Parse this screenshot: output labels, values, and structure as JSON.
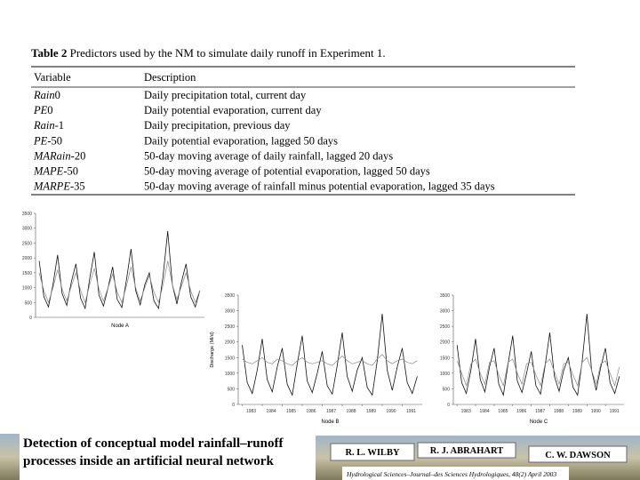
{
  "table": {
    "title_label": "Table 2",
    "title": "Predictors used by the NM to simulate daily runoff in Experiment 1.",
    "header": [
      "Variable",
      "Description"
    ],
    "rows": [
      [
        {
          "italic": "Rain",
          "plain": "0"
        },
        "Daily precipitation total, current day"
      ],
      [
        {
          "italic": "PE",
          "plain": "0"
        },
        "Daily potential evaporation, current day"
      ],
      [
        {
          "italic": "Rain",
          "plain": "-1"
        },
        "Daily precipitation, previous day"
      ],
      [
        {
          "italic": "PE",
          "plain": "-50"
        },
        "Daily potential evaporation, lagged 50 days"
      ],
      [
        {
          "italic": "MARain",
          "plain": "-20"
        },
        "50-day moving average of daily rainfall, lagged 20 days"
      ],
      [
        {
          "italic": "MAPE",
          "plain": "-50"
        },
        "50-day moving average of potential evaporation, lagged 50 days"
      ],
      [
        {
          "italic": "MARPE",
          "plain": "-35"
        },
        "50-day moving average of rainfall minus potential evaporation, lagged 35 days"
      ]
    ]
  },
  "chart_data": [
    {
      "type": "line",
      "xlabel": "Node A",
      "x": [
        1983,
        1983.25,
        1983.5,
        1983.75,
        1984,
        1984.25,
        1984.5,
        1984.75,
        1985,
        1985.25,
        1985.5,
        1985.75,
        1986,
        1986.25,
        1986.5,
        1986.75,
        1987,
        1987.25,
        1987.5,
        1987.75,
        1988,
        1988.25,
        1988.5,
        1988.75,
        1989,
        1989.25,
        1989.5,
        1989.75,
        1990,
        1990.25,
        1990.5,
        1990.75,
        1991,
        1991.25,
        1991.5,
        1991.75
      ],
      "xlim": [
        1982.8,
        1992
      ],
      "ylim": [
        0,
        3500
      ],
      "yticks": [
        0,
        500,
        1000,
        1500,
        2000,
        2500,
        3000,
        3500
      ],
      "series": [
        {
          "color": "#111111",
          "values": [
            1900,
            700,
            350,
            1100,
            2100,
            800,
            400,
            1200,
            1800,
            650,
            300,
            1300,
            2200,
            750,
            380,
            1000,
            1700,
            600,
            330,
            1250,
            2300,
            900,
            420,
            1100,
            1500,
            550,
            300,
            1400,
            2900,
            1100,
            450,
            1200,
            1800,
            700,
            350,
            900
          ]
        },
        {
          "color": "#888888",
          "values": [
            1500,
            900,
            500,
            1000,
            1600,
            950,
            550,
            1050,
            1500,
            900,
            500,
            1100,
            1650,
            950,
            550,
            1000,
            1450,
            850,
            500,
            1050,
            1700,
            1000,
            550,
            1000,
            1400,
            850,
            500,
            1100,
            1900,
            1100,
            600,
            1050,
            1500,
            900,
            500,
            900
          ]
        }
      ]
    },
    {
      "type": "line",
      "xlabel": "Node B",
      "ylabel": "Discharge (Ml/d)",
      "x": [
        1983,
        1983.25,
        1983.5,
        1983.75,
        1984,
        1984.25,
        1984.5,
        1984.75,
        1985,
        1985.25,
        1985.5,
        1985.75,
        1986,
        1986.25,
        1986.5,
        1986.75,
        1987,
        1987.25,
        1987.5,
        1987.75,
        1988,
        1988.25,
        1988.5,
        1988.75,
        1989,
        1989.25,
        1989.5,
        1989.75,
        1990,
        1990.25,
        1990.5,
        1990.75,
        1991,
        1991.25,
        1991.5,
        1991.75
      ],
      "xlim": [
        1982.8,
        1992
      ],
      "ylim": [
        0,
        3500
      ],
      "yticks": [
        0,
        500,
        1000,
        1500,
        2000,
        2500,
        3000,
        3500
      ],
      "xticks": [
        1983,
        1984,
        1985,
        1986,
        1987,
        1988,
        1989,
        1990,
        1991
      ],
      "series": [
        {
          "color": "#111111",
          "values": [
            1900,
            700,
            350,
            1100,
            2100,
            800,
            400,
            1200,
            1800,
            650,
            300,
            1300,
            2200,
            750,
            380,
            1000,
            1700,
            600,
            330,
            1250,
            2300,
            900,
            420,
            1100,
            1500,
            550,
            300,
            1400,
            2900,
            1100,
            450,
            1200,
            1800,
            700,
            350,
            900
          ]
        },
        {
          "color": "#888888",
          "values": [
            1450,
            1350,
            1300,
            1400,
            1500,
            1350,
            1300,
            1450,
            1400,
            1300,
            1250,
            1400,
            1500,
            1350,
            1300,
            1350,
            1400,
            1300,
            1250,
            1400,
            1550,
            1400,
            1300,
            1350,
            1400,
            1300,
            1250,
            1450,
            1600,
            1400,
            1300,
            1400,
            1450,
            1350,
            1300,
            1400
          ]
        }
      ]
    },
    {
      "type": "line",
      "xlabel": "Node C",
      "x": [
        1983,
        1983.25,
        1983.5,
        1983.75,
        1984,
        1984.25,
        1984.5,
        1984.75,
        1985,
        1985.25,
        1985.5,
        1985.75,
        1986,
        1986.25,
        1986.5,
        1986.75,
        1987,
        1987.25,
        1987.5,
        1987.75,
        1988,
        1988.25,
        1988.5,
        1988.75,
        1989,
        1989.25,
        1989.5,
        1989.75,
        1990,
        1990.25,
        1990.5,
        1990.75,
        1991,
        1991.25,
        1991.5,
        1991.75
      ],
      "xlim": [
        1982.8,
        1992
      ],
      "ylim": [
        0,
        3500
      ],
      "yticks": [
        0,
        500,
        1000,
        1500,
        2000,
        2500,
        3000,
        3500
      ],
      "xticks": [
        1983,
        1984,
        1985,
        1986,
        1987,
        1988,
        1989,
        1990,
        1991
      ],
      "series": [
        {
          "color": "#111111",
          "values": [
            1900,
            700,
            350,
            1100,
            2100,
            800,
            400,
            1200,
            1800,
            650,
            300,
            1300,
            2200,
            750,
            380,
            1000,
            1700,
            600,
            330,
            1250,
            2300,
            900,
            420,
            1100,
            1500,
            550,
            300,
            1400,
            2900,
            1100,
            450,
            1200,
            1800,
            700,
            350,
            900
          ]
        },
        {
          "color": "#888888",
          "values": [
            1400,
            1000,
            600,
            1300,
            1450,
            1000,
            650,
            1350,
            1400,
            950,
            600,
            1350,
            1450,
            1000,
            650,
            1300,
            1350,
            950,
            600,
            1300,
            1450,
            1050,
            650,
            1300,
            1350,
            950,
            600,
            1350,
            1500,
            1100,
            650,
            1300,
            1400,
            1000,
            600,
            1200
          ]
        }
      ]
    }
  ],
  "footer": {
    "title": [
      "Detection of conceptual model rainfall–runoff",
      "processes inside an artificial neural network"
    ],
    "authors": [
      "R. L. WILBY",
      "R. J. ABRAHART",
      "C. W. DAWSON"
    ],
    "journal": "Hydrological Sciences–Journal–des Sciences Hydrologiques, 48(2) April 2003"
  }
}
